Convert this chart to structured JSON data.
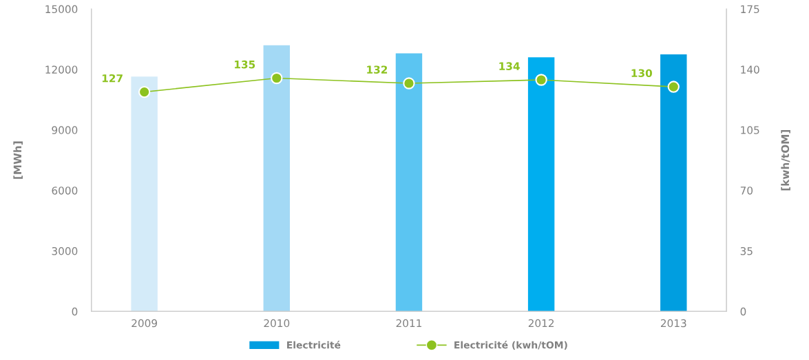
{
  "chart_data": {
    "type": "bar",
    "categories": [
      "2009",
      "2010",
      "2011",
      "2012",
      "2013"
    ],
    "ylabel": "[MWh]",
    "y2label": "[kwh/tOM]",
    "ylim": [
      0,
      15000
    ],
    "yticks": [
      0,
      3000,
      6000,
      9000,
      12000,
      15000
    ],
    "y2lim": [
      0,
      175
    ],
    "y2ticks": [
      0,
      35,
      70,
      105,
      140,
      175
    ],
    "grid": false,
    "legend": "bottom",
    "series": [
      {
        "name": "Electricité",
        "color": "#009ee0",
        "colors": [
          "#d4ebf9",
          "#a3d9f5",
          "#5bc5f2",
          "#00aeef",
          "#009ee0"
        ],
        "values": [
          11650,
          13200,
          12800,
          12600,
          12750
        ]
      },
      {
        "name": "Electricité (kwh/tOM)",
        "type": "line",
        "axis": "y2",
        "color": "#8dc21f",
        "marker": "circle",
        "data_labels": true,
        "values": [
          127,
          135,
          132,
          134,
          130
        ]
      }
    ]
  }
}
